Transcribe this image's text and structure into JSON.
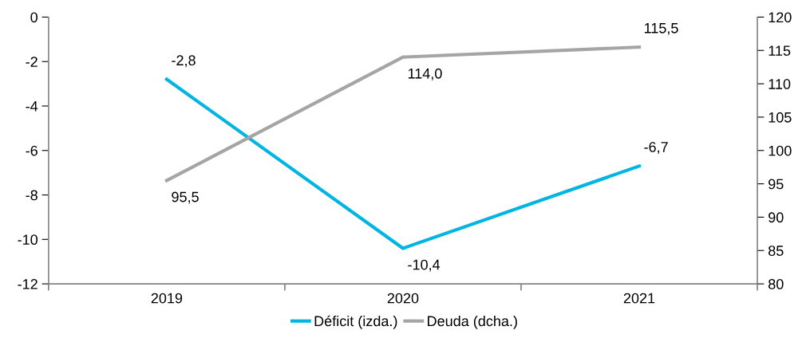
{
  "chart_data": {
    "type": "line",
    "categories": [
      "2019",
      "2020",
      "2021"
    ],
    "series": [
      {
        "name": "Déficit (izda.)",
        "color": "#00b5e2",
        "values": [
          -2.8,
          -10.4,
          -6.7
        ],
        "value_labels": [
          "-2,8",
          "-10,4",
          "-6,7"
        ]
      },
      {
        "name": "Deuda (dcha.)",
        "color": "#a5a5a5",
        "values": [
          95.5,
          114.0,
          115.5
        ],
        "value_labels": [
          "95,5",
          "114,0",
          "115,5"
        ],
        "axis": "y2"
      }
    ],
    "ylim": [
      -12,
      0
    ],
    "yticks": [
      -12,
      -10,
      -8,
      -6,
      -4,
      -2,
      0
    ],
    "y2lim": [
      80,
      120
    ],
    "y2ticks": [
      80,
      85,
      90,
      95,
      100,
      105,
      110,
      115,
      120
    ],
    "grid": false,
    "legend": "bottom",
    "marker": "none",
    "line_style": "solid"
  }
}
